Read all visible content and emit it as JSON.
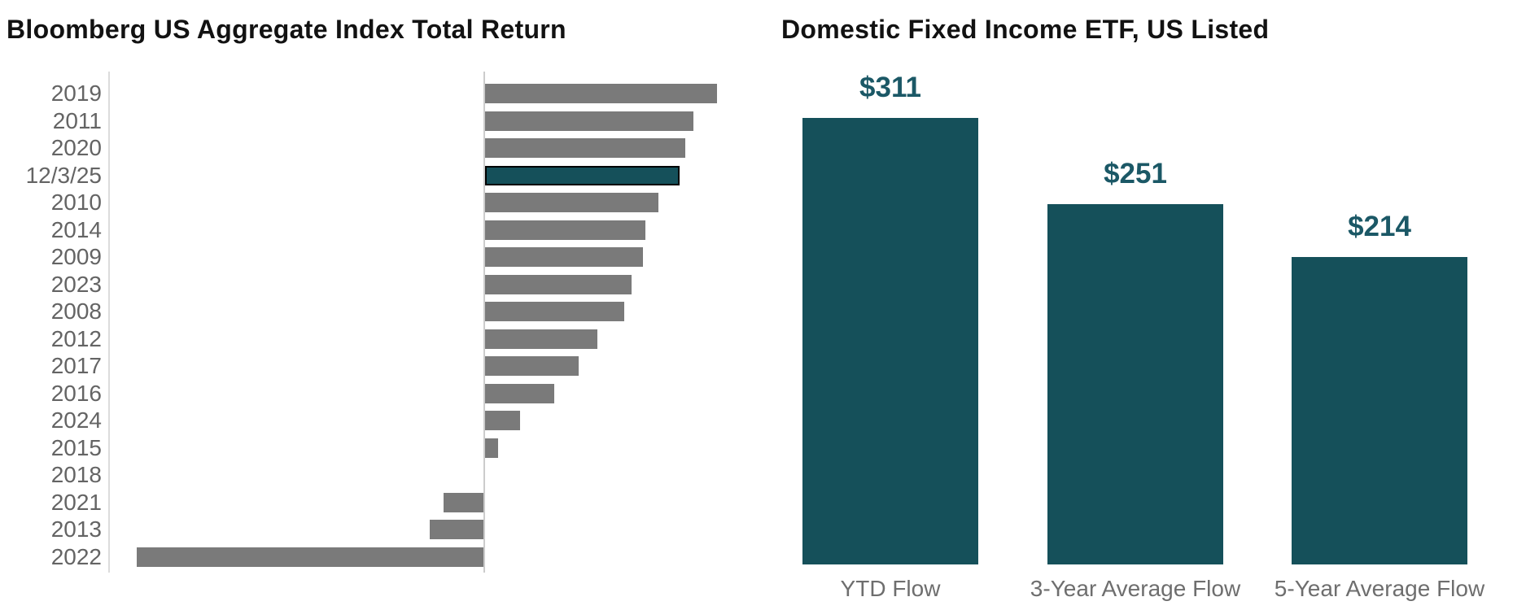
{
  "chart_data": [
    {
      "type": "bar",
      "orientation": "horizontal",
      "title": "Bloomberg US Aggregate Index Total Return",
      "unit": "% total return",
      "categories": [
        "2019",
        "2011",
        "2020",
        "12/3/25",
        "2010",
        "2014",
        "2009",
        "2023",
        "2008",
        "2012",
        "2017",
        "2016",
        "2024",
        "2015",
        "2018",
        "2021",
        "2013",
        "2022"
      ],
      "values": [
        8.7,
        7.8,
        7.5,
        7.3,
        6.5,
        6.0,
        5.9,
        5.5,
        5.2,
        4.2,
        3.5,
        2.6,
        1.3,
        0.5,
        0.0,
        -1.5,
        -2.0,
        -13.0
      ],
      "xlim": [
        -14,
        10
      ],
      "grid": "off",
      "zero_baseline": true,
      "highlight_category": "12/3/25",
      "bar_color": "#7A7A7A",
      "highlight_color": "#15505A",
      "highlight_border_color": "#000000",
      "axis_label_color": "#646464"
    },
    {
      "type": "bar",
      "orientation": "vertical",
      "title": "Domestic Fixed Income ETF, US Listed",
      "unit": "$B flows",
      "categories": [
        "YTD Flow",
        "3-Year Average Flow",
        "5-Year Average Flow"
      ],
      "values": [
        311,
        251,
        214
      ],
      "data_labels": [
        "$311",
        "$251",
        "$214"
      ],
      "ylim": [
        0,
        330
      ],
      "grid": "off",
      "legend": "none",
      "bar_color": "#15505A",
      "data_label_color": "#1B5866",
      "axis_label_color": "#6E6E6E"
    }
  ]
}
